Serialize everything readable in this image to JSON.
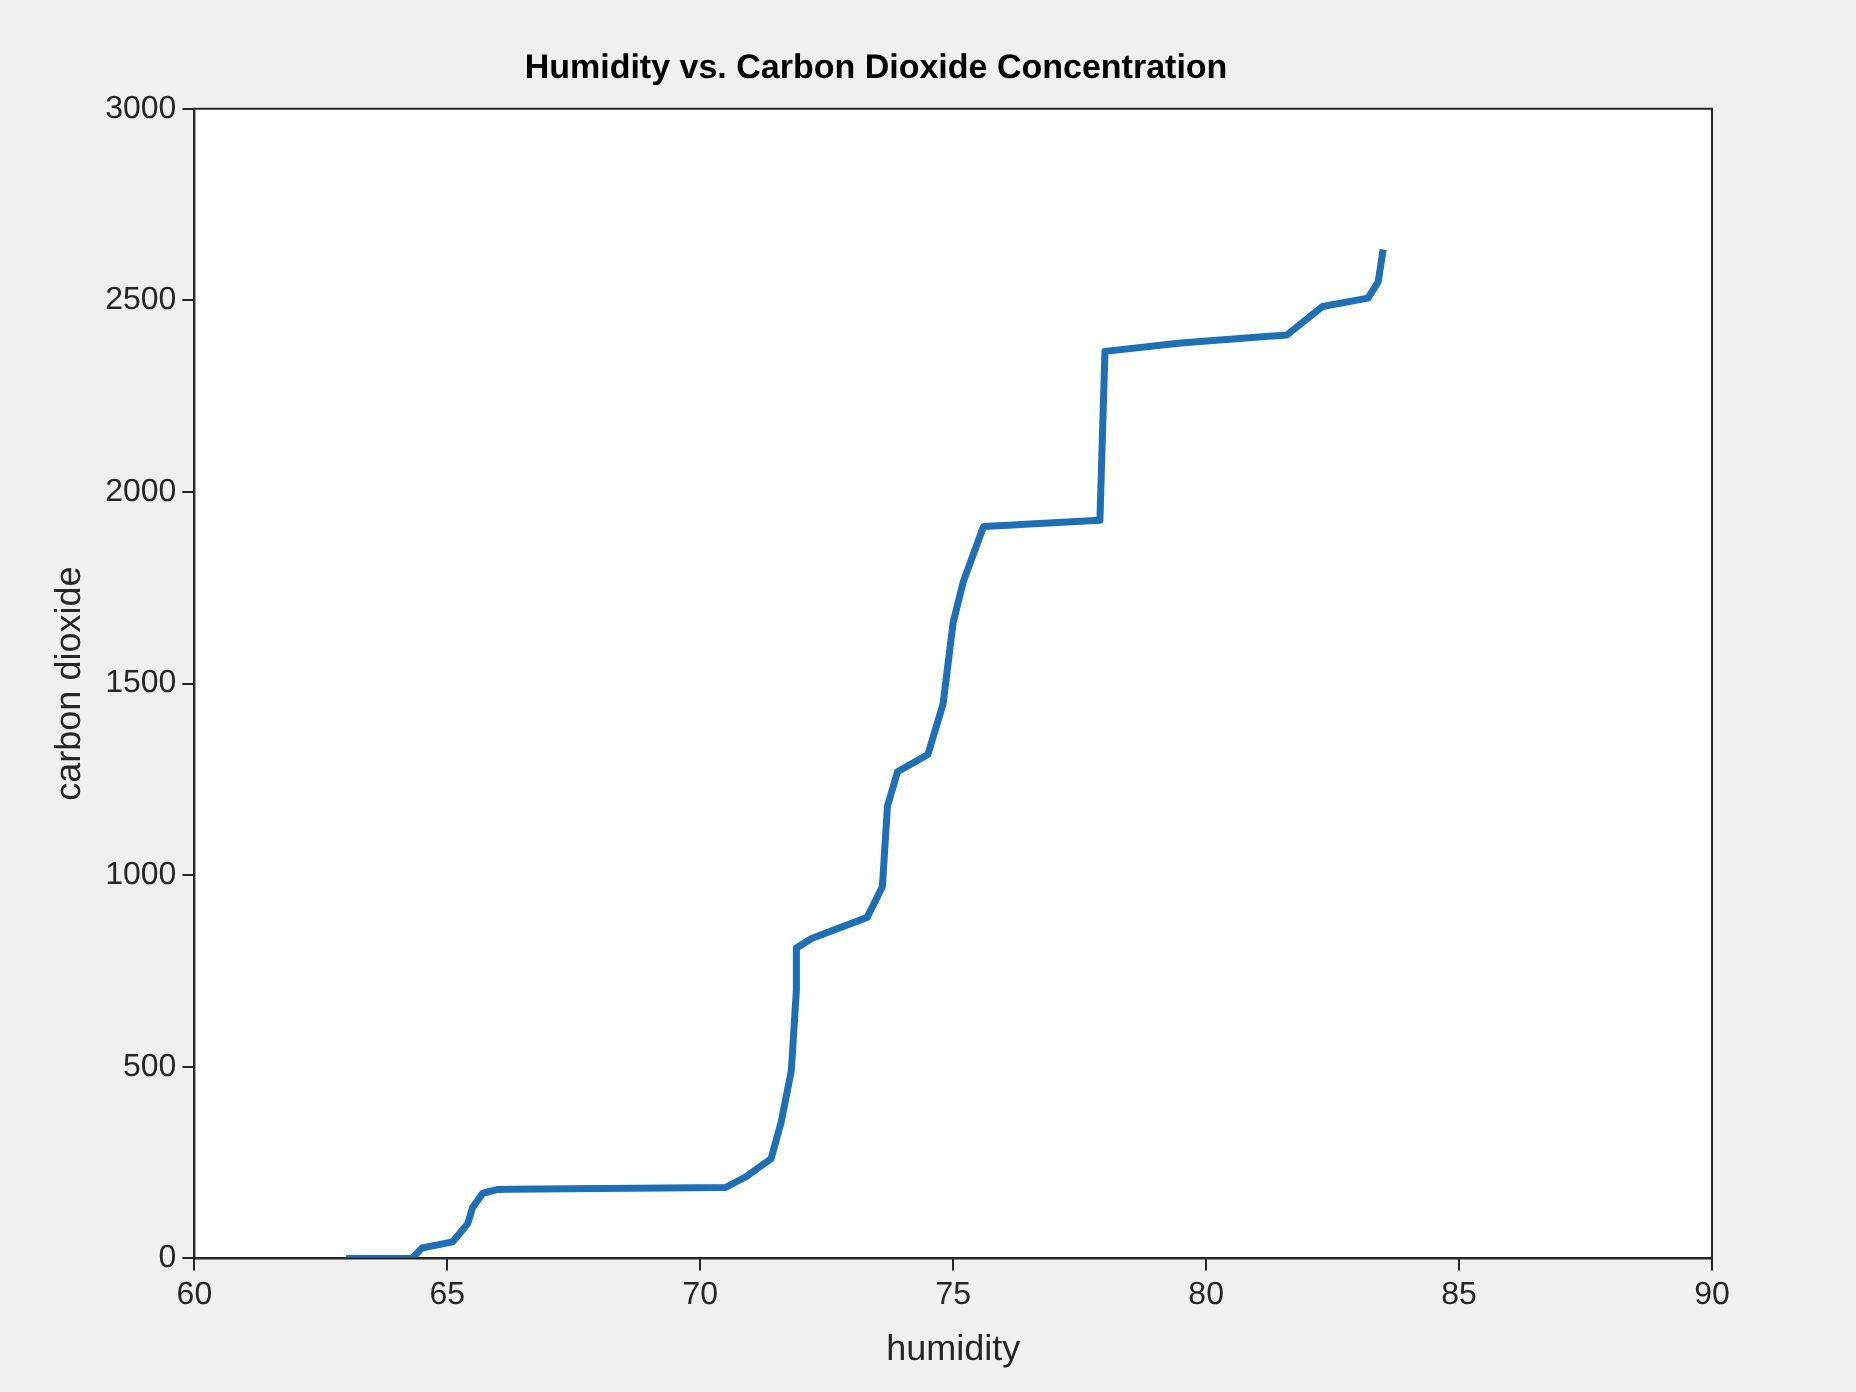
{
  "chart_data": {
    "type": "line",
    "title": "Humidity vs. Carbon Dioxide Concentration",
    "xlabel": "humidity",
    "ylabel": "carbon dioxide",
    "xlim": [
      60,
      90
    ],
    "xticks": [
      60,
      65,
      70,
      75,
      80,
      85,
      90
    ],
    "ylim": [
      0,
      3000
    ],
    "yticks": [
      0,
      500,
      1000,
      1500,
      2000,
      2500,
      3000
    ],
    "grid": false,
    "legend": false,
    "x": [
      63.0,
      64.3,
      64.5,
      65.1,
      65.4,
      65.5,
      65.7,
      66.0,
      70.5,
      70.9,
      71.4,
      71.6,
      71.8,
      71.9,
      71.9,
      72.2,
      73.3,
      73.6,
      73.7,
      73.9,
      74.5,
      74.8,
      75.0,
      75.2,
      75.6,
      77.9,
      78.0,
      79.5,
      81.6,
      82.3,
      83.2,
      83.4,
      83.5
    ],
    "series": [
      {
        "color": "#1f6fb4",
        "values": [
          0,
          0,
          27,
          43,
          90,
          133,
          170,
          180,
          185,
          213,
          260,
          356,
          490,
          700,
          810,
          835,
          890,
          970,
          1180,
          1270,
          1315,
          1447,
          1660,
          1766,
          1910,
          1926,
          2367,
          2389,
          2410,
          2484,
          2506,
          2548,
          2633
        ]
      }
    ]
  }
}
